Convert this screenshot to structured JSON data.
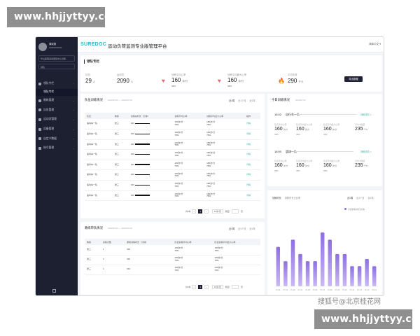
{
  "watermarks": {
    "top": "www.hhjjyttyy.com",
    "bottom": "www.hhjjyttyy.com",
    "sohu": "搜狐号@北京桂花网"
  },
  "sidebar": {
    "user_name": "周晓燕",
    "user_phone": "13801002003",
    "org": "华山医院运动康复中心训练...",
    "role": "领队",
    "menu": [
      {
        "label": "领队专栏",
        "expanded": true
      },
      {
        "label": "领队专栏",
        "sub": true
      },
      {
        "label": "教练管理"
      },
      {
        "label": "队伍管理"
      },
      {
        "label": "运动员管理"
      },
      {
        "label": "设备管理"
      },
      {
        "label": "自定义数据"
      },
      {
        "label": "账号管理"
      }
    ]
  },
  "topbar": {
    "logo": "SUREDOC",
    "title": "运动负荷监测专业版管理平台",
    "lang": "简体中文 ▾"
  },
  "section": {
    "title": "领队专栏"
  },
  "stats": {
    "teams": {
      "label": "队伍",
      "value": "29",
      "unit": "人"
    },
    "athletes": {
      "label": "运动员",
      "value": "2090",
      "unit": "人"
    },
    "avg_hr": {
      "label": "训练平均心率",
      "value": "160",
      "unit": "次/分",
      "pct": "68%"
    },
    "max_hr": {
      "label": "训练平均最大心率",
      "value": "160",
      "unit": "次/分",
      "pct": "68%"
    },
    "load": {
      "label": "平均负荷",
      "value": "290",
      "unit": "千卡"
    },
    "export_button": "导出数据"
  },
  "team_training": {
    "title": "队伍训练情况",
    "date": "2022/07/01 — 2022/07/10",
    "tabs": [
      "近1周",
      "近1个月",
      "近1年"
    ],
    "columns": [
      "队伍",
      "教练",
      "训练总时长（分钟）",
      "训练平均心率",
      "训练平均最大心率",
      "操作"
    ],
    "rows": [
      {
        "team": "速叫车一队",
        "coach": "张三",
        "duration": "340",
        "avg_hr": "180次/分",
        "avg_pct": "78%",
        "max_hr": "180次/分",
        "max_pct": "78%",
        "op": "详情"
      },
      {
        "team": "速叫车一队",
        "coach": "张三",
        "duration": "340",
        "avg_hr": "180次/分",
        "avg_pct": "78%",
        "max_hr": "180次/分",
        "max_pct": "78%",
        "op": "详情"
      },
      {
        "team": "速叫车一队",
        "coach": "张三",
        "duration": "340",
        "avg_hr": "180次/分",
        "avg_pct": "78%",
        "max_hr": "180次/分",
        "max_pct": "78%",
        "op": "详情"
      },
      {
        "team": "速叫车一队",
        "coach": "张三",
        "duration": "340",
        "avg_hr": "180次/分",
        "avg_pct": "78%",
        "max_hr": "180次/分",
        "max_pct": "78%",
        "op": "详情"
      },
      {
        "team": "速叫车一队",
        "coach": "张三",
        "duration": "340",
        "avg_hr": "180次/分",
        "avg_pct": "78%",
        "max_hr": "180次/分",
        "max_pct": "78%",
        "op": "详情"
      },
      {
        "team": "速叫车一队",
        "coach": "张三",
        "duration": "340",
        "avg_hr": "180次/分",
        "avg_pct": "78%",
        "max_hr": "180次/分",
        "max_pct": "78%",
        "op": "详情"
      },
      {
        "team": "速叫车一队",
        "coach": "张三",
        "duration": "340",
        "avg_hr": "180次/分",
        "avg_pct": "78%",
        "max_hr": "180次/分",
        "max_pct": "78%",
        "op": "详情"
      },
      {
        "team": "速叫车一队",
        "coach": "张三",
        "duration": "340",
        "avg_hr": "180次/分",
        "avg_pct": "78%",
        "max_hr": "180次/分",
        "max_pct": "78%",
        "op": "详情"
      }
    ],
    "pager": {
      "total": "共8条",
      "page": "1",
      "size": "10条/页",
      "goto": "跳至",
      "goto_unit": "页"
    }
  },
  "coach_training": {
    "title": "教练带队情况",
    "date": "2022/07/01 — 2022/07/10",
    "tabs": [
      "近1周",
      "近1个月",
      "近1年"
    ],
    "columns": [
      "教练",
      "训练次数",
      "累积训练时长（分钟）",
      "队伍训练平均心率",
      "队伍训练平均最大心率"
    ],
    "rows": [
      {
        "coach": "张三",
        "count": "1",
        "duration": "340",
        "avg_hr": "180次/分",
        "avg_pct": "78%",
        "max_hr": "180次/分",
        "max_pct": "78%"
      },
      {
        "coach": "张三",
        "count": "1",
        "duration": "340",
        "avg_hr": "180次/分",
        "avg_pct": "78%",
        "max_hr": "180次/分",
        "max_pct": "78%"
      },
      {
        "coach": "张三",
        "count": "1",
        "duration": "340",
        "avg_hr": "180次/分",
        "avg_pct": "78%",
        "max_hr": "180次/分",
        "max_pct": "78%"
      }
    ],
    "pager": {
      "total": "共3条",
      "page": "1",
      "size": "10条/页",
      "goto": "跳至",
      "goto_unit": "页"
    }
  },
  "today": {
    "title": "今日训练情况",
    "date": "2022/07/11",
    "teams": [
      {
        "time": "16:02",
        "name": "自行车一队",
        "link": "训练详情 >",
        "m1": "队伍平均心率",
        "v1": "160",
        "p1": "78%",
        "m2": "队伍平均最大心率",
        "v2": "160",
        "p2": "78%",
        "m3": "队伍平均最大心率",
        "v3": "160",
        "p3": "78%",
        "m4": "平均卡路里",
        "v4": "235",
        "u4": "千卡"
      },
      {
        "time": "16:00",
        "name": "篮球一队",
        "link": "训练详情 >",
        "m1": "队伍平均心率",
        "v1": "160",
        "p1": "78%",
        "m2": "队伍平均最大心率",
        "v2": "160",
        "p2": "78%",
        "m3": "队伍平均最大心率",
        "v3": "160",
        "p3": "78%",
        "m4": "平均卡路里",
        "v4": "235",
        "u4": "千卡"
      }
    ],
    "hr_unit": "次/分"
  },
  "chart_panel": {
    "tabs": [
      "训练时长",
      "训练时长占比率"
    ],
    "period_tabs": [
      "近1周",
      "近1个月",
      "近1年"
    ],
    "legend": "全部训练时长(分钟)"
  },
  "chart_data": {
    "type": "bar",
    "categories": [
      "07-01",
      "07-02",
      "07-03",
      "07-04",
      "07-05",
      "07-06",
      "07-07",
      "07-08",
      "07-09",
      "07-10",
      "07-11",
      "07-12",
      "07-13",
      "07-14"
    ],
    "values": [
      55,
      35,
      65,
      45,
      35,
      35,
      75,
      65,
      45,
      45,
      28,
      28,
      38,
      28
    ],
    "colors": {
      "bar_top": "#8d6fe0",
      "bar_bottom": "#c9b8f4"
    }
  }
}
